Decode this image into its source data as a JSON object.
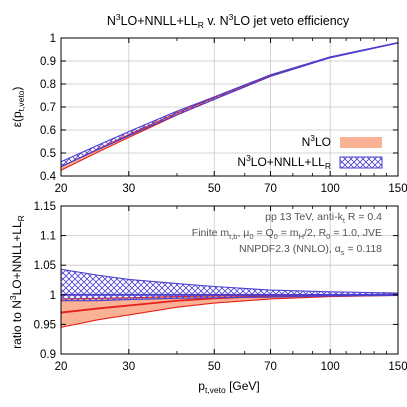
{
  "chart_data": {
    "type": "line",
    "title": {
      "pre": "N",
      "sup1": "3",
      "mid": "LO+NNLL+LL",
      "sub": "R",
      "post": " v. N",
      "sup2": "3",
      "end": "LO jet veto efficiency"
    },
    "x_axis": {
      "label": {
        "base": "p",
        "sub": "t,veto",
        "unit": " [GeV]"
      },
      "scale": "log",
      "range": [
        20,
        150
      ],
      "ticks": [
        20,
        30,
        50,
        70,
        100,
        150
      ],
      "tick_labels": [
        "20",
        "30",
        "50",
        "70",
        "100",
        "150"
      ]
    },
    "top_panel": {
      "ylabel": {
        "base": "ε(p",
        "sub": "t,veto",
        "close": ")"
      },
      "ylim": [
        0.4,
        1.0
      ],
      "yticks": [
        0.4,
        0.5,
        0.6,
        0.7,
        0.8,
        0.9,
        1.0
      ],
      "ytick_labels": [
        "0.4",
        "0.5",
        "0.6",
        "0.7",
        "0.8",
        "0.9",
        "1"
      ],
      "x": [
        20,
        25,
        30,
        40,
        50,
        70,
        100,
        150
      ],
      "series": [
        {
          "name": "N3LO",
          "legend": {
            "base": "N",
            "sup": "3",
            "rest": "LO"
          },
          "color": "#e8201a",
          "fill": "#f9b295",
          "lower": [
            0.425,
            0.505,
            0.568,
            0.665,
            0.733,
            0.834,
            0.915,
            0.979
          ],
          "upper": [
            0.44,
            0.518,
            0.58,
            0.675,
            0.741,
            0.838,
            0.917,
            0.979
          ]
        },
        {
          "name": "N3LO+NNLL+LLR",
          "legend": {
            "base": "N",
            "sup": "3",
            "rest": "LO+NNLL+LL",
            "sub": "R"
          },
          "color": "#4a3fd0",
          "fill": "hatch",
          "lower": [
            0.44,
            0.515,
            0.575,
            0.667,
            0.733,
            0.833,
            0.914,
            0.978
          ],
          "upper": [
            0.462,
            0.535,
            0.593,
            0.682,
            0.744,
            0.84,
            0.918,
            0.98
          ]
        }
      ]
    },
    "bottom_panel": {
      "ylabel": {
        "base": "ratio to N",
        "sup": "3",
        "rest": "LO+NNLL+LL",
        "sub": "R"
      },
      "ylim": [
        0.9,
        1.15
      ],
      "yticks": [
        0.9,
        0.95,
        1.0,
        1.05,
        1.1,
        1.15
      ],
      "ytick_labels": [
        "0.9",
        "0.95",
        "1",
        "1.05",
        "1.1",
        "1.15"
      ],
      "x": [
        20,
        25,
        30,
        40,
        50,
        70,
        100,
        150
      ],
      "series": [
        {
          "name": "N3LO",
          "color": "#e8201a",
          "fill": "#f9b295",
          "central": [
            0.97,
            0.977,
            0.982,
            0.99,
            0.994,
            0.998,
            0.999,
            1.0
          ],
          "lower": [
            0.945,
            0.958,
            0.966,
            0.979,
            0.986,
            0.993,
            0.997,
            0.999
          ],
          "upper": [
            0.993,
            0.994,
            0.995,
            0.997,
            0.998,
            0.999,
            1.0,
            1.001
          ]
        },
        {
          "name": "N3LO+NNLL+LLR",
          "color": "#4a3fd0",
          "fill": "hatch",
          "central": [
            1.0,
            1.0,
            1.0,
            1.0,
            1.0,
            1.0,
            1.0,
            1.0
          ],
          "lower": [
            0.99,
            0.99,
            0.992,
            0.994,
            0.995,
            0.996,
            0.998,
            0.999
          ],
          "upper": [
            1.043,
            1.033,
            1.026,
            1.019,
            1.014,
            1.008,
            1.005,
            1.003
          ]
        }
      ]
    },
    "annotations": {
      "line1": {
        "a": "pp 13 TeV, anti-k",
        "b": "t",
        "c": " R = 0.4"
      },
      "line2": {
        "a": "Finite m",
        "b": "t,b",
        "c": ", μ",
        "d": "0",
        "e": " = Q",
        "f": "0",
        "g": " = m",
        "h": "H",
        "i": "/2, R",
        "j": "0",
        "k": " = 1.0, JVE"
      },
      "line3": {
        "a": "NNPDF2.3 (NNLO), α",
        "b": "s",
        "c": " = 0.118"
      }
    },
    "grid": true,
    "legend_position": "bottom-right of top panel"
  }
}
